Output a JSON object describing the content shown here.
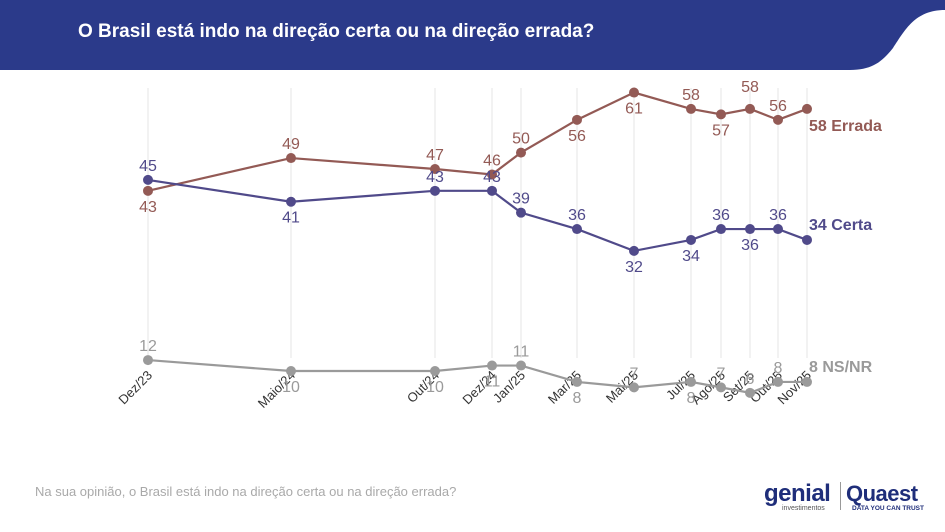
{
  "header": {
    "title": "O Brasil está indo na direção certa ou na direção errada?",
    "background_color": "#2b3a8a"
  },
  "footnote": "Na sua opinião, o Brasil está indo na direção certa ou na direção errada?",
  "logos": {
    "genial": "genial",
    "genial_sub": "investimentos",
    "quaest": "Quaest",
    "quaest_sub": "DATA YOU CAN TRUST"
  },
  "chart_data": {
    "type": "line",
    "title": "O Brasil está indo na direção certa ou na direção errada?",
    "categories": [
      "Dez/23",
      "Maio/24",
      "Out/24",
      "Dez/24",
      "Jan/25",
      "Mar/25",
      "Mai/25",
      "Jul/25",
      "Ago/25",
      "Set/25",
      "Out/25",
      "Nov/25"
    ],
    "ylim": [
      0,
      70
    ],
    "grid": "vertical",
    "series": [
      {
        "name": "Errada",
        "end_label": "58 Errada",
        "color": "#935a55",
        "values": [
          43,
          49,
          47,
          46,
          50,
          56,
          61,
          58,
          57,
          58,
          56,
          58
        ],
        "labels": [
          "43",
          "49",
          "47",
          "46",
          "50",
          "56",
          "61",
          "58",
          "57",
          "58",
          "56",
          ""
        ]
      },
      {
        "name": "Certa",
        "end_label": "34 Certa",
        "color": "#504a8a",
        "values": [
          45,
          41,
          43,
          43,
          39,
          36,
          32,
          34,
          36,
          36,
          36,
          34
        ],
        "labels": [
          "45",
          "41",
          "43",
          "43",
          "39",
          "36",
          "32",
          "34",
          "36",
          "36",
          "36",
          ""
        ]
      },
      {
        "name": "NS/NR",
        "end_label": "8 NS/NR",
        "color": "#9a9a9a",
        "values": [
          12,
          10,
          10,
          11,
          11,
          8,
          7,
          8,
          7,
          6,
          8,
          8
        ],
        "labels": [
          "12",
          "10",
          "10",
          "11",
          "11",
          "8",
          "7",
          "8",
          "7",
          "6",
          "8",
          ""
        ]
      }
    ]
  }
}
